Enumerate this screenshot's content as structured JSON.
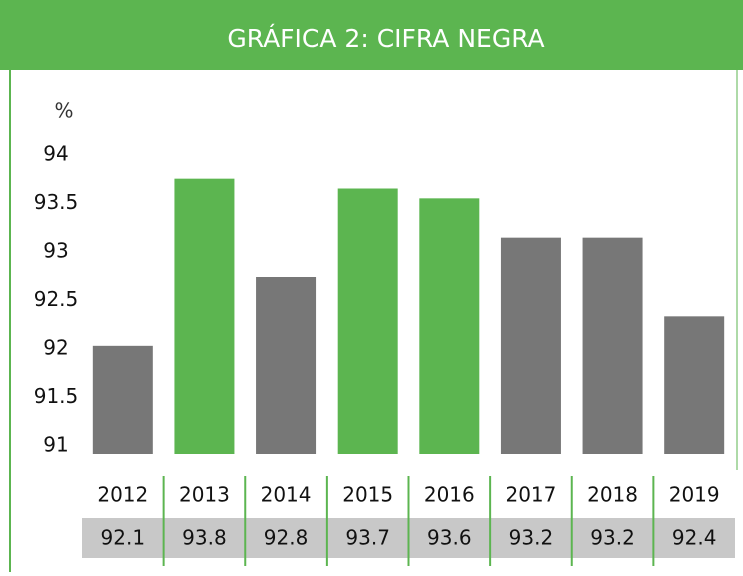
{
  "chart_data": {
    "type": "bar",
    "title": "GRÁFICA 2: CIFRA NEGRA",
    "y_label": "%",
    "categories": [
      "2012",
      "2013",
      "2014",
      "2015",
      "2016",
      "2017",
      "2018",
      "2019"
    ],
    "values": [
      92.1,
      93.8,
      92.8,
      93.7,
      93.6,
      93.2,
      93.2,
      92.4
    ],
    "colors": [
      "#777777",
      "#5cb550",
      "#777777",
      "#5cb550",
      "#5cb550",
      "#777777",
      "#777777",
      "#777777"
    ],
    "ylim": [
      91,
      94
    ],
    "yticks": [
      91,
      91.5,
      92,
      92.5,
      93,
      93.5,
      94
    ],
    "grid": false
  }
}
